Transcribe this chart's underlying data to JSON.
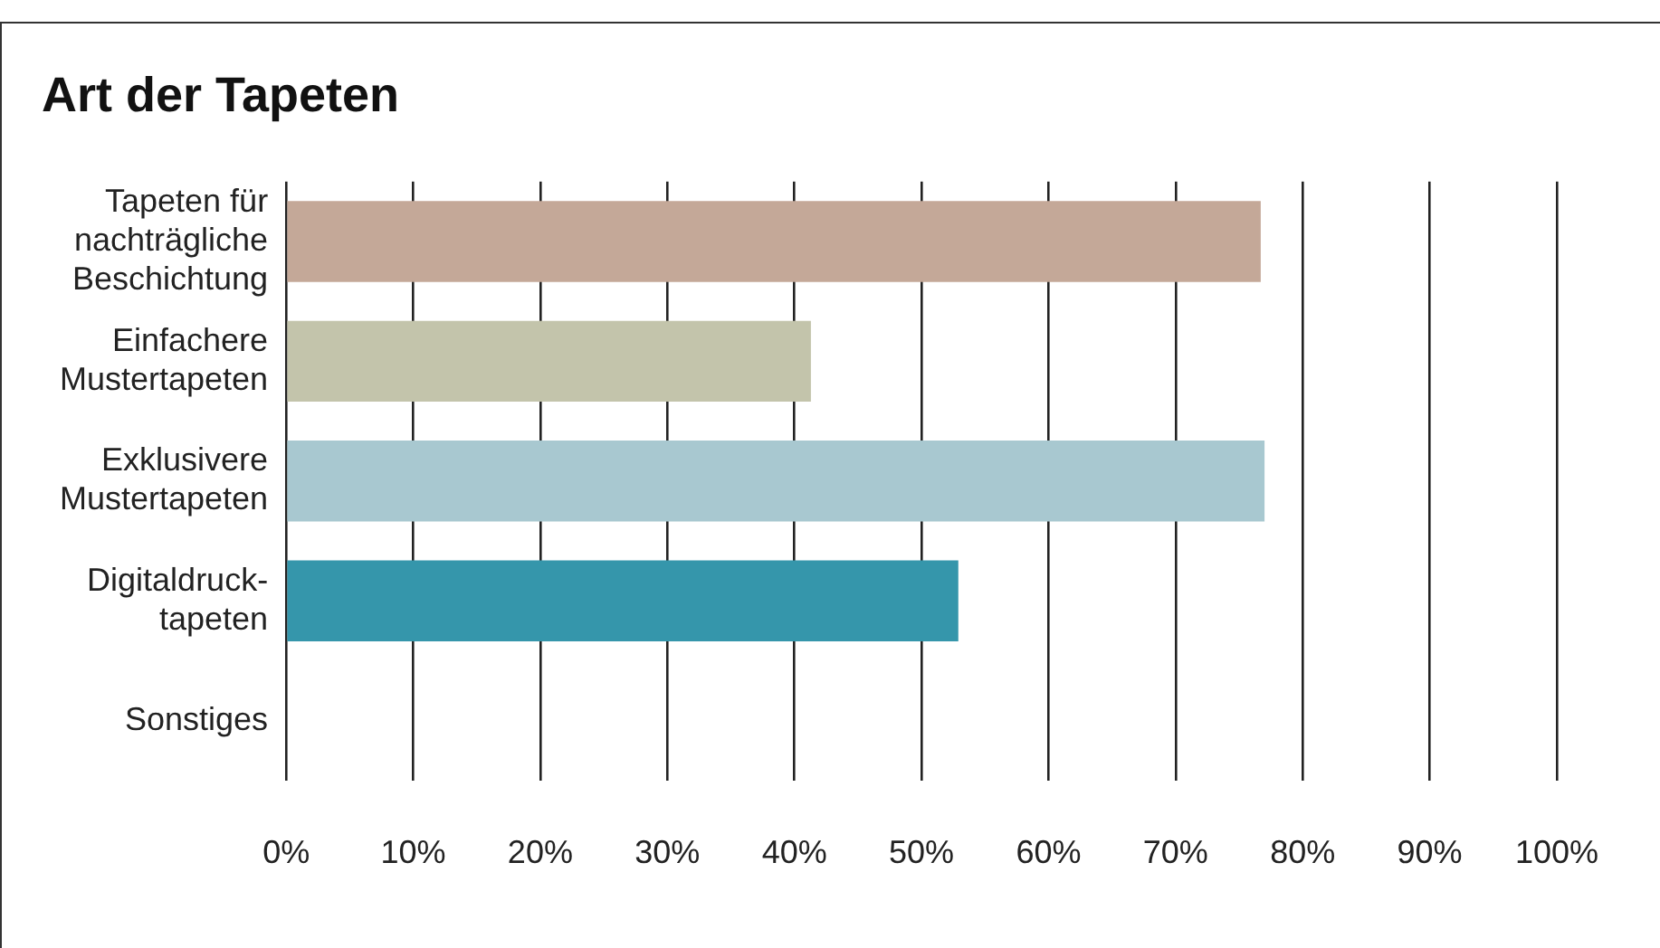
{
  "chart_data": {
    "type": "bar",
    "orientation": "horizontal",
    "title": "Art der Tapeten",
    "categories": [
      "Tapeten für\nnachträgliche\nBeschichtung",
      "Einfachere\nMustertapeten",
      "Exklusivere\nMustertapeten",
      "Digitaldruck-\ntapeten",
      "Sonstiges"
    ],
    "values": [
      76.7,
      41.3,
      77.0,
      52.9,
      0
    ],
    "colors": [
      "#c4a898",
      "#c3c4ab",
      "#a8c8d0",
      "#3596ab",
      "#3596ab"
    ],
    "xlim": [
      0,
      100
    ],
    "xticks": [
      {
        "value": 0,
        "label": "0%"
      },
      {
        "value": 10,
        "label": "10%"
      },
      {
        "value": 20,
        "label": "20%"
      },
      {
        "value": 30,
        "label": "30%"
      },
      {
        "value": 40,
        "label": "40%"
      },
      {
        "value": 50,
        "label": "50%"
      },
      {
        "value": 60,
        "label": "60%"
      },
      {
        "value": 70,
        "label": "70%"
      },
      {
        "value": 80,
        "label": "80%"
      },
      {
        "value": 90,
        "label": "90%"
      },
      {
        "value": 100,
        "label": "100%"
      }
    ],
    "grid": "x",
    "legend": false
  }
}
